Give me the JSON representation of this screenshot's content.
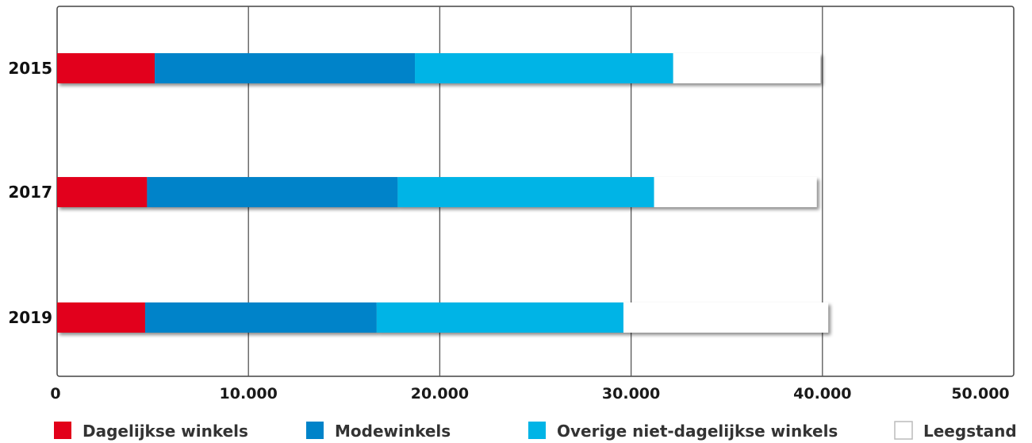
{
  "chart_data": {
    "type": "bar",
    "orientation": "horizontal",
    "stacked": true,
    "categories": [
      "2015",
      "2017",
      "2019"
    ],
    "series": [
      {
        "name": "Dagelijkse winkels",
        "color": "#e2001a",
        "values": [
          5100,
          4700,
          4600
        ]
      },
      {
        "name": "Modewinkels",
        "color": "#0083c9",
        "values": [
          13600,
          13100,
          12100
        ]
      },
      {
        "name": "Overige niet-dagelijkse winkels",
        "color": "#00b4e6",
        "values": [
          13500,
          13400,
          12900
        ]
      },
      {
        "name": "Leegstand",
        "color": "#ffffff",
        "values": [
          7700,
          8500,
          10700
        ]
      }
    ],
    "xlim": [
      0,
      50000
    ],
    "xticks": [
      0,
      10000,
      20000,
      30000,
      40000,
      50000
    ],
    "xtick_labels": [
      "0",
      "10.000",
      "20.000",
      "30.000",
      "40.000",
      "50.000"
    ],
    "grid": true,
    "legend_position": "bottom",
    "title": "",
    "xlabel": "",
    "ylabel": ""
  }
}
